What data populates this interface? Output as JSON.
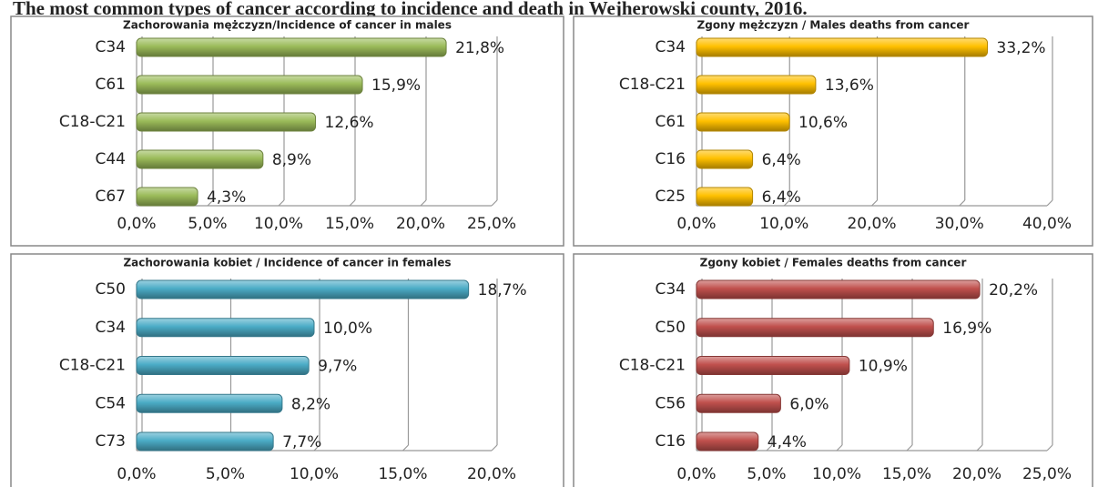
{
  "title": "The most common types of cancer according to incidence and death in Wejherowski county, 2016.",
  "chart_data": [
    {
      "type": "bar",
      "orientation": "horizontal",
      "title": "Zachorowania mężczyzn/Incidence of cancer in males",
      "color": "#9bbb59",
      "categories": [
        "C34",
        "C61",
        "C18-C21",
        "C44",
        "C67"
      ],
      "values": [
        21.8,
        15.9,
        12.6,
        8.9,
        4.3
      ],
      "value_labels": [
        "21,8%",
        "15,9%",
        "12,6%",
        "8,9%",
        "4,3%"
      ],
      "xlim": [
        0,
        25
      ],
      "xticks": [
        {
          "value": 0,
          "label": "0,0%"
        },
        {
          "value": 5,
          "label": "5,0%"
        },
        {
          "value": 10,
          "label": "10,0%"
        },
        {
          "value": 15,
          "label": "15,0%"
        },
        {
          "value": 20,
          "label": "20,0%"
        },
        {
          "value": 25,
          "label": "25,0%"
        }
      ],
      "grid": true
    },
    {
      "type": "bar",
      "orientation": "horizontal",
      "title": "Zgony mężczyzn / Males deaths from cancer",
      "color": "#ffc000",
      "categories": [
        "C34",
        "C18-C21",
        "C61",
        "C16",
        "C25"
      ],
      "values": [
        33.2,
        13.6,
        10.6,
        6.4,
        6.4
      ],
      "value_labels": [
        "33,2%",
        "13,6%",
        "10,6%",
        "6,4%",
        "6,4%"
      ],
      "xlim": [
        0,
        40
      ],
      "xticks": [
        {
          "value": 0,
          "label": "0,0%"
        },
        {
          "value": 10,
          "label": "10,0%"
        },
        {
          "value": 20,
          "label": "20,0%"
        },
        {
          "value": 30,
          "label": "30,0%"
        },
        {
          "value": 40,
          "label": "40,0%"
        }
      ],
      "grid": true
    },
    {
      "type": "bar",
      "orientation": "horizontal",
      "title": "Zachorowania kobiet / Incidence of cancer in females",
      "color": "#4bacc6",
      "categories": [
        "C50",
        "C34",
        "C18-C21",
        "C54",
        "C73"
      ],
      "values": [
        18.7,
        10.0,
        9.7,
        8.2,
        7.7
      ],
      "value_labels": [
        "18,7%",
        "10,0%",
        "9,7%",
        "8,2%",
        "7,7%"
      ],
      "xlim": [
        0,
        20
      ],
      "xticks": [
        {
          "value": 0,
          "label": "0,0%"
        },
        {
          "value": 5,
          "label": "5,0%"
        },
        {
          "value": 10,
          "label": "10,0%"
        },
        {
          "value": 15,
          "label": "15,0%"
        },
        {
          "value": 20,
          "label": "20,0%"
        }
      ],
      "grid": true
    },
    {
      "type": "bar",
      "orientation": "horizontal",
      "title": "Zgony kobiet / Females deaths from cancer",
      "color": "#c0504d",
      "categories": [
        "C34",
        "C50",
        "C18-C21",
        "C56",
        "C16"
      ],
      "values": [
        20.2,
        16.9,
        10.9,
        6.0,
        4.4
      ],
      "value_labels": [
        "20,2%",
        "16,9%",
        "10,9%",
        "6,0%",
        "4,4%"
      ],
      "xlim": [
        0,
        25
      ],
      "xticks": [
        {
          "value": 0,
          "label": "0,0%"
        },
        {
          "value": 5,
          "label": "5,0%"
        },
        {
          "value": 10,
          "label": "10,0%"
        },
        {
          "value": 15,
          "label": "15,0%"
        },
        {
          "value": 20,
          "label": "20,0%"
        },
        {
          "value": 25,
          "label": "25,0%"
        }
      ],
      "grid": true
    }
  ]
}
